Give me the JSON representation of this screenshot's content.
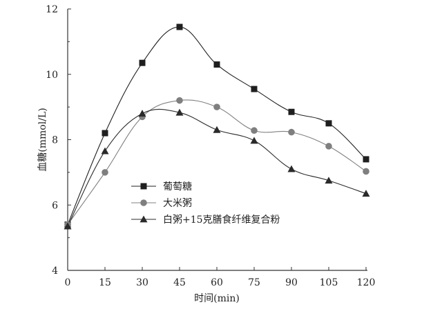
{
  "chart_data": {
    "type": "line",
    "title": "",
    "xlabel": "时间(min)",
    "ylabel": "血糖(mmol/L)",
    "x": [
      0,
      15,
      30,
      45,
      60,
      75,
      90,
      105,
      120
    ],
    "xlim": [
      0,
      120
    ],
    "ylim": [
      4,
      12
    ],
    "xticks": [
      "0",
      "15",
      "30",
      "45",
      "60",
      "75",
      "90",
      "105",
      "120"
    ],
    "yticks": [
      "4",
      "6",
      "8",
      "10",
      "12"
    ],
    "grid": false,
    "legend_position": "center-left",
    "series": [
      {
        "name": "葡萄糖",
        "marker": "square",
        "color": "#1f1f1f",
        "values": [
          5.4,
          8.2,
          10.35,
          11.45,
          10.3,
          9.55,
          8.85,
          8.5,
          7.4
        ]
      },
      {
        "name": "大米粥",
        "marker": "circle",
        "color": "#7f7f7f",
        "values": [
          5.4,
          7.0,
          8.7,
          9.2,
          9.0,
          8.28,
          8.23,
          7.8,
          7.03
        ]
      },
      {
        "name": "白粥+15克膳食纤维复合粉",
        "marker": "triangle",
        "color": "#2a2a2a",
        "values": [
          5.35,
          7.65,
          8.8,
          8.83,
          8.3,
          7.97,
          7.1,
          6.75,
          6.35
        ]
      }
    ]
  }
}
